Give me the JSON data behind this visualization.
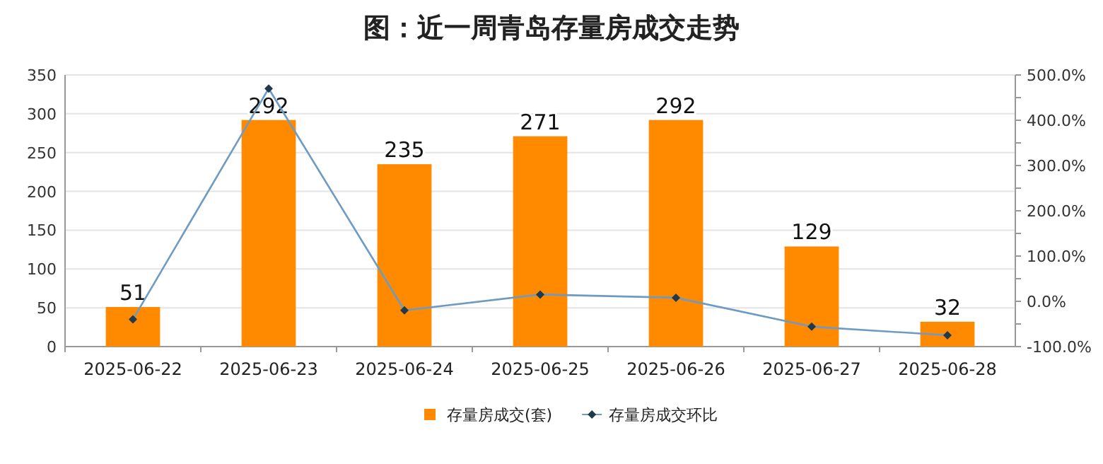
{
  "chart_data": {
    "type": "bar",
    "title": "图：近一周青岛存量房成交走势",
    "categories": [
      "2025-06-22",
      "2025-06-23",
      "2025-06-24",
      "2025-06-25",
      "2025-06-26",
      "2025-06-27",
      "2025-06-28"
    ],
    "series": [
      {
        "name": "存量房成交(套)",
        "color": "#ff8a00",
        "values": [
          51,
          292,
          235,
          271,
          292,
          129,
          32
        ],
        "data_labels": true
      },
      {
        "name": "存量房成交环比",
        "type": "line",
        "axis": "y2",
        "color": "#6d9bc3",
        "marker": "diamond",
        "line_style": "solid",
        "values": [
          -40,
          470,
          -20,
          15,
          8,
          -56,
          -75
        ]
      }
    ],
    "ylim": [
      0,
      350
    ],
    "yticks": [
      0,
      50,
      100,
      150,
      200,
      250,
      300,
      350
    ],
    "y2lim": [
      -100,
      500
    ],
    "y2ticks": [
      {
        "value": -100,
        "label": "-100.0%"
      },
      {
        "value": -50,
        "label": null
      },
      {
        "value": 0,
        "label": "0.0%"
      },
      {
        "value": 50,
        "label": null
      },
      {
        "value": 100,
        "label": "100.0%"
      },
      {
        "value": 150,
        "label": null
      },
      {
        "value": 200,
        "label": "200.0%"
      },
      {
        "value": 250,
        "label": null
      },
      {
        "value": 300,
        "label": "300.0%"
      },
      {
        "value": 350,
        "label": null
      },
      {
        "value": 400,
        "label": "400.0%"
      },
      {
        "value": 450,
        "label": null
      },
      {
        "value": 500,
        "label": "500.0%"
      }
    ],
    "grid": "y",
    "legend": "bottom"
  }
}
